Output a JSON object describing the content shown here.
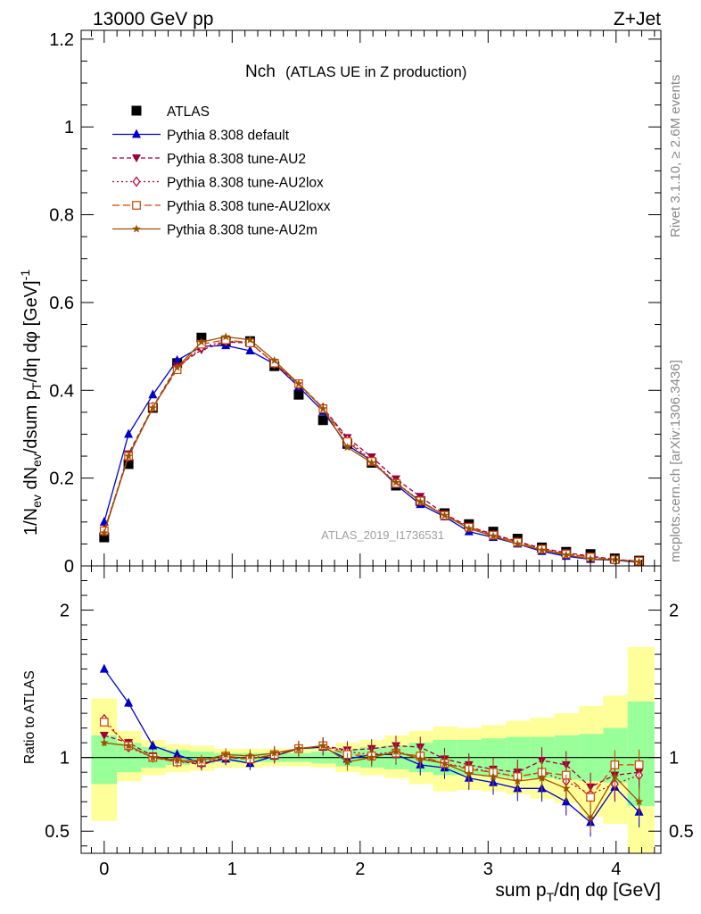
{
  "header": {
    "left": "13000 GeV pp",
    "right": "Z+Jet"
  },
  "side_labels": {
    "top": "Rivet 3.1.10, ≥ 2.6M events",
    "bottom": "mcplots.cern.ch [arXiv:1306.3436]"
  },
  "watermark": "ATLAS_2019_I1736531",
  "chart_data": {
    "type": "line",
    "title": "Nch",
    "subtitle": "(ATLAS UE in Z production)",
    "xlabel": "sum p_T/dη dφ [GeV]",
    "ylabel_main": "1/N_ev dN_ev/dsum p_T/dη dφ [GeV]^-1",
    "ylabel_ratio": "Ratio to ATLAS",
    "xlim": [
      -0.18,
      4.35
    ],
    "ylim_main": [
      0,
      1.22
    ],
    "ylim_ratio": [
      0.35,
      2.3
    ],
    "xticks": [
      "0",
      "1",
      "2",
      "3",
      "4"
    ],
    "yticks_main": [
      "0",
      "0.2",
      "0.4",
      "0.6",
      "0.8",
      "1",
      "1.2"
    ],
    "yticks_ratio": [
      "0.5",
      "1",
      "2"
    ],
    "legend_position": "top-left",
    "x": [
      0.0,
      0.19,
      0.38,
      0.57,
      0.76,
      0.95,
      1.14,
      1.33,
      1.52,
      1.71,
      1.9,
      2.09,
      2.28,
      2.47,
      2.66,
      2.85,
      3.04,
      3.23,
      3.42,
      3.61,
      3.8,
      3.99,
      4.18
    ],
    "series": [
      {
        "name": "ATLAS",
        "color": "#000000",
        "marker": "square",
        "dash": "none",
        "values": [
          0.065,
          0.232,
          0.36,
          0.462,
          0.52,
          0.512,
          0.512,
          0.455,
          0.39,
          0.332,
          0.278,
          0.235,
          0.183,
          0.148,
          0.12,
          0.095,
          0.078,
          0.062,
          0.042,
          0.032,
          0.027,
          0.017,
          0.012
        ]
      },
      {
        "name": "Pythia 8.308 default",
        "color": "#0000cc",
        "marker": "triangle-up",
        "dash": "none",
        "values": [
          0.1,
          0.3,
          0.39,
          0.468,
          0.5,
          0.502,
          0.49,
          0.46,
          0.408,
          0.352,
          0.275,
          0.24,
          0.185,
          0.14,
          0.112,
          0.078,
          0.065,
          0.05,
          0.033,
          0.022,
          0.015,
          0.013,
          0.008
        ]
      },
      {
        "name": "Pythia 8.308 tune-AU2",
        "color": "#99003d",
        "marker": "triangle-down",
        "dash": "5,3",
        "values": [
          0.076,
          0.255,
          0.362,
          0.455,
          0.492,
          0.51,
          0.508,
          0.462,
          0.415,
          0.36,
          0.292,
          0.248,
          0.198,
          0.158,
          0.118,
          0.09,
          0.072,
          0.056,
          0.04,
          0.03,
          0.022,
          0.015,
          0.011
        ]
      },
      {
        "name": "Pythia 8.308 tune-AU2lox",
        "color": "#b30033",
        "marker": "diamond",
        "dash": "2,3",
        "values": [
          0.082,
          0.248,
          0.362,
          0.45,
          0.498,
          0.512,
          0.51,
          0.46,
          0.412,
          0.36,
          0.288,
          0.24,
          0.19,
          0.148,
          0.115,
          0.088,
          0.07,
          0.054,
          0.038,
          0.027,
          0.02,
          0.014,
          0.011
        ]
      },
      {
        "name": "Pythia 8.308 tune-AU2loxx",
        "color": "#cc4400",
        "marker": "square-open",
        "dash": "8,4",
        "values": [
          0.08,
          0.25,
          0.362,
          0.447,
          0.505,
          0.515,
          0.508,
          0.462,
          0.415,
          0.358,
          0.283,
          0.238,
          0.188,
          0.148,
          0.115,
          0.088,
          0.07,
          0.054,
          0.038,
          0.027,
          0.02,
          0.014,
          0.011
        ]
      },
      {
        "name": "Pythia 8.308 tune-AU2m",
        "color": "#995200",
        "marker": "star",
        "dash": "none",
        "values": [
          0.075,
          0.25,
          0.36,
          0.452,
          0.51,
          0.522,
          0.515,
          0.468,
          0.415,
          0.358,
          0.27,
          0.235,
          0.19,
          0.146,
          0.115,
          0.085,
          0.068,
          0.05,
          0.036,
          0.025,
          0.016,
          0.014,
          0.009
        ]
      }
    ],
    "ratio_series": [
      {
        "name": "Pythia 8.308 default",
        "values": [
          1.6,
          1.37,
          1.08,
          1.02,
          0.96,
          0.99,
          0.96,
          1.01,
          1.06,
          1.07,
          0.99,
          1.02,
          1.02,
          0.95,
          0.93,
          0.86,
          0.83,
          0.79,
          0.79,
          0.7,
          0.56,
          0.8,
          0.63
        ]
      },
      {
        "name": "Pythia 8.308 tune-AU2",
        "values": [
          1.15,
          1.1,
          1.01,
          0.98,
          0.95,
          1.0,
          0.99,
          1.02,
          1.06,
          1.08,
          1.05,
          1.06,
          1.08,
          1.07,
          0.99,
          0.95,
          0.92,
          0.9,
          0.98,
          0.95,
          0.8,
          0.88,
          0.9
        ]
      },
      {
        "name": "Pythia 8.308 tune-AU2lox",
        "values": [
          1.26,
          1.07,
          1.0,
          0.97,
          0.96,
          1.0,
          1.0,
          1.01,
          1.06,
          1.08,
          1.04,
          1.02,
          1.04,
          1.0,
          0.96,
          0.93,
          0.9,
          0.87,
          0.9,
          0.84,
          0.75,
          0.82,
          0.88
        ]
      },
      {
        "name": "Pythia 8.308 tune-AU2loxx",
        "values": [
          1.24,
          1.08,
          1.0,
          0.97,
          0.97,
          1.01,
          0.99,
          1.02,
          1.06,
          1.08,
          1.02,
          1.01,
          1.03,
          1.01,
          0.96,
          0.92,
          0.9,
          0.87,
          0.9,
          0.88,
          0.73,
          0.95,
          0.95
        ]
      },
      {
        "name": "Pythia 8.308 tune-AU2m",
        "values": [
          1.1,
          1.08,
          1.0,
          0.98,
          0.98,
          1.02,
          1.01,
          1.03,
          1.06,
          1.08,
          0.97,
          1.0,
          1.04,
          0.99,
          0.96,
          0.89,
          0.87,
          0.84,
          0.86,
          0.79,
          0.59,
          0.87,
          0.7
        ]
      }
    ],
    "ratio_bands": {
      "edges": [
        -0.1,
        0.1,
        0.29,
        0.48,
        0.67,
        0.86,
        1.05,
        1.24,
        1.43,
        1.62,
        1.81,
        2.0,
        2.19,
        2.38,
        2.57,
        2.76,
        2.95,
        3.14,
        3.33,
        3.52,
        3.71,
        3.9,
        4.09,
        4.3
      ],
      "inner_lo": [
        0.82,
        0.9,
        0.93,
        0.95,
        0.96,
        0.97,
        0.97,
        0.97,
        0.97,
        0.96,
        0.94,
        0.93,
        0.92,
        0.9,
        0.88,
        0.88,
        0.87,
        0.86,
        0.86,
        0.85,
        0.84,
        0.83,
        0.67
      ],
      "inner_hi": [
        1.15,
        1.1,
        1.07,
        1.05,
        1.04,
        1.03,
        1.03,
        1.03,
        1.03,
        1.04,
        1.06,
        1.07,
        1.08,
        1.1,
        1.12,
        1.12,
        1.13,
        1.14,
        1.14,
        1.15,
        1.16,
        1.2,
        1.38
      ],
      "outer_lo": [
        0.57,
        0.84,
        0.88,
        0.9,
        0.91,
        0.93,
        0.93,
        0.94,
        0.94,
        0.93,
        0.9,
        0.88,
        0.86,
        0.82,
        0.77,
        0.78,
        0.77,
        0.75,
        0.72,
        0.69,
        0.6,
        0.55,
        0.33
      ],
      "outer_hi": [
        1.4,
        1.18,
        1.12,
        1.09,
        1.08,
        1.06,
        1.06,
        1.06,
        1.06,
        1.07,
        1.1,
        1.12,
        1.15,
        1.18,
        1.21,
        1.2,
        1.22,
        1.25,
        1.27,
        1.3,
        1.35,
        1.42,
        1.75
      ]
    }
  }
}
